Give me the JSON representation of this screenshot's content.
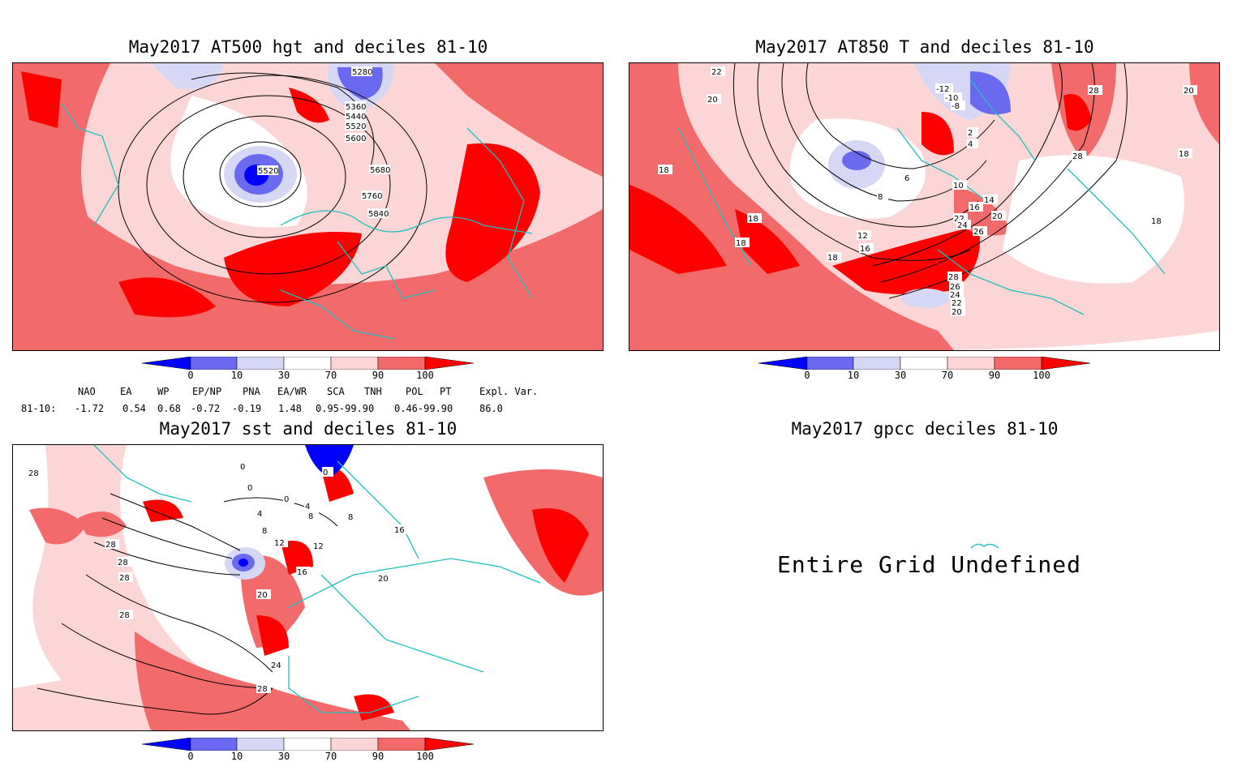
{
  "panels": {
    "hgt500": {
      "title": "May2017 AT500 hgt and deciles 81-10",
      "contour_labels": [
        "5280",
        "5360",
        "5440",
        "5520",
        "5600",
        "5520",
        "5680",
        "5760",
        "5840"
      ]
    },
    "t850": {
      "title": "May2017 AT850 T and deciles 81-10",
      "contour_labels": [
        "22",
        "20",
        "18",
        "18",
        "18",
        "18",
        "16",
        "12",
        "8",
        "6",
        "4",
        "2",
        "10",
        "14",
        "16",
        "20",
        "22",
        "24",
        "26",
        "28",
        "26",
        "24",
        "22",
        "20",
        "-12",
        "-10",
        "-8",
        "28",
        "28",
        "20",
        "18",
        "18"
      ]
    },
    "sst": {
      "title": "May2017 sst and deciles 81-10",
      "contour_labels": [
        "28",
        "0",
        "0",
        "0",
        "0",
        "4",
        "4",
        "8",
        "8",
        "8",
        "12",
        "12",
        "16",
        "16",
        "20",
        "20",
        "24",
        "28",
        "28",
        "28",
        "28",
        "28"
      ]
    },
    "gpcc": {
      "title": "May2017 gpcc deciles 81-10",
      "message": "Entire Grid Undefined"
    }
  },
  "colorbar": {
    "ticks": [
      "0",
      "10",
      "30",
      "70",
      "90",
      "100"
    ],
    "colors": [
      "#0000ff",
      "#6a6af0",
      "#d6d6f5",
      "#ffffff",
      "#fcd6d6",
      "#f26a6a",
      "#ff0000"
    ]
  },
  "indices": {
    "headers": [
      "NAO",
      "EA",
      "WP",
      "EP/NP",
      "PNA",
      "EA/WR",
      "SCA",
      "TNH",
      "POL",
      "PT",
      "Expl. Var."
    ],
    "row_label": "81-10:",
    "values": [
      "-1.72",
      "0.54",
      "0.68",
      "-0.72",
      "-0.19",
      "1.48",
      "0.95-99.90",
      "0.46-99.90",
      "86.0"
    ]
  },
  "colors": {
    "coast": "#1fbfbf",
    "fill_light_red": "#fcd6d6",
    "fill_mid_red": "#f26a6a",
    "fill_red": "#ff0000",
    "fill_light_blue": "#d6d6f5",
    "fill_mid_blue": "#6a6af0",
    "fill_blue": "#0000ff"
  }
}
